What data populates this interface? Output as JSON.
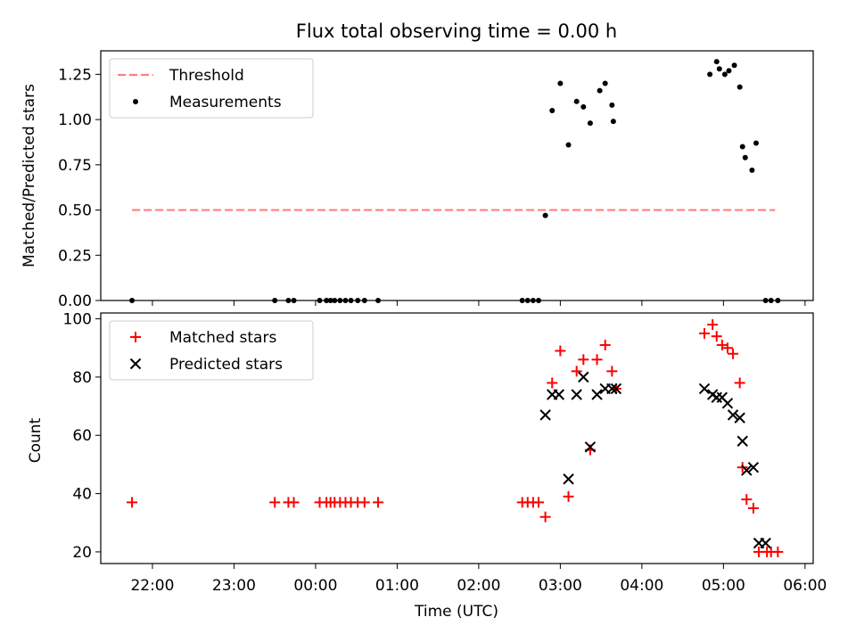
{
  "chart_data": [
    {
      "type": "scatter",
      "title": "Flux total observing time = 0.00 h",
      "xlabel": "",
      "ylabel": "Matched/Predicted stars",
      "ylim": [
        0,
        1.38
      ],
      "xlim": [
        "21:22",
        "06:06"
      ],
      "yticks": [
        "0.00",
        "0.25",
        "0.50",
        "0.75",
        "1.00",
        "1.25"
      ],
      "ytick_values": [
        0,
        0.25,
        0.5,
        0.75,
        1.0,
        1.25
      ],
      "legend_position": "top-left",
      "series": [
        {
          "name": "Threshold",
          "kind": "line",
          "style": "dashed",
          "color": "#ff7f7f",
          "x": [
            "21:45",
            "05:38"
          ],
          "y": [
            0.5,
            0.5
          ]
        },
        {
          "name": "Measurements",
          "kind": "scatter",
          "marker": "dot",
          "color": "#000000",
          "x": [
            "21:45",
            "23:30",
            "23:40",
            "23:44",
            "00:03",
            "00:08",
            "00:11",
            "00:14",
            "00:18",
            "00:22",
            "00:26",
            "00:31",
            "00:36",
            "00:46",
            "02:32",
            "02:36",
            "02:40",
            "02:44",
            "02:49",
            "02:54",
            "03:00",
            "03:06",
            "03:12",
            "03:17",
            "03:22",
            "03:29",
            "03:33",
            "03:38",
            "03:39",
            "04:50",
            "04:55",
            "04:57",
            "05:01",
            "05:04",
            "05:08",
            "05:12",
            "05:14",
            "05:16",
            "05:21",
            "05:24",
            "05:31",
            "05:35",
            "05:40"
          ],
          "y": [
            0,
            0,
            0,
            0,
            0,
            0,
            0,
            0,
            0,
            0,
            0,
            0,
            0,
            0,
            0,
            0,
            0,
            0,
            0.47,
            1.05,
            1.2,
            0.86,
            1.1,
            1.07,
            0.98,
            1.16,
            1.2,
            1.08,
            0.99,
            1.25,
            1.32,
            1.28,
            1.25,
            1.27,
            1.3,
            1.18,
            0.85,
            0.79,
            0.72,
            0.87,
            0,
            0,
            0
          ]
        }
      ]
    },
    {
      "type": "scatter",
      "title": "",
      "xlabel": "Time (UTC)",
      "ylabel": "Count",
      "ylim": [
        16,
        102
      ],
      "xlim": [
        "21:22",
        "06:06"
      ],
      "yticks": [
        "20",
        "40",
        "60",
        "80",
        "100"
      ],
      "ytick_values": [
        20,
        40,
        60,
        80,
        100
      ],
      "xticks": [
        "22:00",
        "23:00",
        "00:00",
        "01:00",
        "02:00",
        "03:00",
        "04:00",
        "05:00",
        "06:00"
      ],
      "legend_position": "top-left",
      "series": [
        {
          "name": "Matched stars",
          "marker": "plus",
          "color": "#ff0000",
          "x": [
            "21:45",
            "23:30",
            "23:40",
            "23:44",
            "00:03",
            "00:08",
            "00:11",
            "00:14",
            "00:18",
            "00:22",
            "00:26",
            "00:31",
            "00:36",
            "00:46",
            "02:32",
            "02:36",
            "02:40",
            "02:44",
            "02:49",
            "02:54",
            "03:00",
            "03:06",
            "03:12",
            "03:17",
            "03:22",
            "03:27",
            "03:33",
            "03:38",
            "03:41",
            "04:46",
            "04:52",
            "04:55",
            "04:59",
            "05:03",
            "05:07",
            "05:12",
            "05:14",
            "05:17",
            "05:22",
            "05:26",
            "05:32",
            "05:35",
            "05:40"
          ],
          "y": [
            37,
            37,
            37,
            37,
            37,
            37,
            37,
            37,
            37,
            37,
            37,
            37,
            37,
            37,
            37,
            37,
            37,
            37,
            32,
            78,
            89,
            39,
            82,
            86,
            55,
            86,
            91,
            82,
            76,
            95,
            98,
            94,
            91,
            90,
            88,
            78,
            49,
            38,
            35,
            20,
            20,
            20,
            20
          ]
        },
        {
          "name": "Predicted stars",
          "marker": "x",
          "color": "#000000",
          "x": [
            "02:49",
            "02:54",
            "02:59",
            "03:06",
            "03:12",
            "03:17",
            "03:22",
            "03:27",
            "03:33",
            "03:38",
            "03:41",
            "04:46",
            "04:52",
            "04:55",
            "04:59",
            "05:03",
            "05:07",
            "05:12",
            "05:14",
            "05:17",
            "05:22",
            "05:26",
            "05:31"
          ],
          "y": [
            67,
            74,
            74,
            45,
            74,
            80,
            56,
            74,
            76,
            76,
            76,
            76,
            74,
            73,
            73,
            71,
            67,
            66,
            58,
            48,
            49,
            23,
            23
          ]
        }
      ]
    }
  ]
}
